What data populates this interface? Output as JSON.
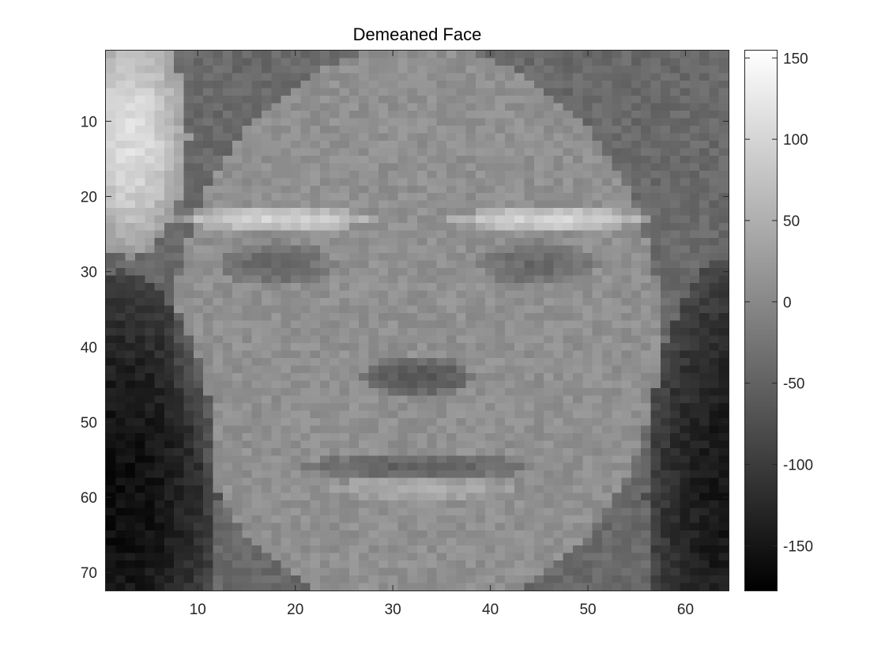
{
  "chart_data": {
    "type": "heatmap",
    "title": "Demeaned Face",
    "xlabel": "",
    "ylabel": "",
    "colormap": "gray",
    "image_columns": 64,
    "image_rows": 72,
    "xlim": [
      0.5,
      64.5
    ],
    "ylim": [
      0.5,
      72.5
    ],
    "y_axis_direction": "reversed",
    "x_ticks": [
      10,
      20,
      30,
      40,
      50,
      60
    ],
    "y_ticks": [
      10,
      20,
      30,
      40,
      50,
      60,
      70
    ],
    "colorbar": {
      "range": [
        -178,
        155
      ],
      "ticks": [
        -150,
        -100,
        -50,
        0,
        50,
        100,
        150
      ],
      "tick_labels": [
        "-150",
        "-100",
        "-50",
        "0",
        "50",
        "100",
        "150"
      ],
      "location": "right"
    },
    "regions": [
      {
        "name": "face",
        "shape": "ellipse",
        "cx": 32.5,
        "cy": 38,
        "rx": 25,
        "ry": 38,
        "value": 10
      },
      {
        "name": "left-hair",
        "shape": "ellipse",
        "cx": 2,
        "cy": 60,
        "rx": 10,
        "ry": 30,
        "value": -160
      },
      {
        "name": "right-hair",
        "shape": "ellipse",
        "cx": 65,
        "cy": 60,
        "rx": 9,
        "ry": 32,
        "value": -150
      },
      {
        "name": "upper-left-bright",
        "shape": "ellipse",
        "cx": 3,
        "cy": 12,
        "rx": 6,
        "ry": 16,
        "value": 110
      },
      {
        "name": "left-brow",
        "shape": "ellipse",
        "cx": 18,
        "cy": 23,
        "rx": 10,
        "ry": 1.5,
        "value": 100
      },
      {
        "name": "right-brow",
        "shape": "ellipse",
        "cx": 46,
        "cy": 23,
        "rx": 10,
        "ry": 1.5,
        "value": 100
      },
      {
        "name": "left-eye",
        "shape": "ellipse",
        "cx": 18,
        "cy": 29,
        "rx": 6,
        "ry": 3,
        "value": -40
      },
      {
        "name": "right-eye",
        "shape": "ellipse",
        "cx": 45,
        "cy": 29,
        "rx": 6,
        "ry": 3,
        "value": -40
      },
      {
        "name": "nose",
        "shape": "ellipse",
        "cx": 32.5,
        "cy": 44,
        "rx": 6,
        "ry": 2.5,
        "value": -70
      },
      {
        "name": "mouth",
        "shape": "ellipse",
        "cx": 32.5,
        "cy": 56,
        "rx": 12,
        "ry": 2,
        "value": -50
      },
      {
        "name": "lower-lip",
        "shape": "ellipse",
        "cx": 32.5,
        "cy": 59,
        "rx": 10,
        "ry": 1.5,
        "value": 45
      }
    ]
  }
}
